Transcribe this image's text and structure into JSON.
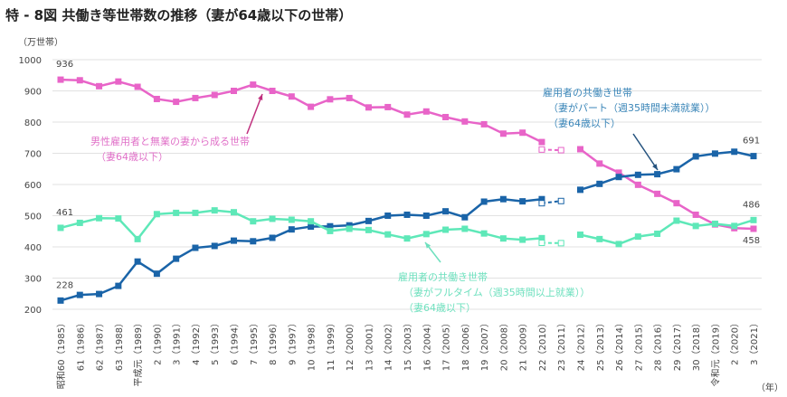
{
  "chart_data": {
    "type": "line",
    "title": "特 - 8図 共働き等世帯数の推移（妻が64歳以下の世帯）",
    "ylabel": "（万世帯）",
    "xlabel": "（年）",
    "ylim": [
      200,
      1000
    ],
    "yticks": [
      200,
      300,
      400,
      500,
      600,
      700,
      800,
      900,
      1000
    ],
    "grid": true,
    "x": [
      1985,
      1986,
      1987,
      1988,
      1989,
      1990,
      1991,
      1992,
      1993,
      1994,
      1995,
      1996,
      1997,
      1998,
      1999,
      2000,
      2001,
      2002,
      2003,
      2004,
      2005,
      2006,
      2007,
      2008,
      2009,
      2010,
      2011,
      2012,
      2013,
      2014,
      2015,
      2016,
      2017,
      2018,
      2019,
      2020,
      2021
    ],
    "categories": [
      "昭和60（1985）",
      "61（1986）",
      "62（1987）",
      "63（1988）",
      "平成元（1989）",
      "2（1990）",
      "3（1991）",
      "4（1992）",
      "5（1993）",
      "6（1994）",
      "7（1995）",
      "8（1996）",
      "9（1997）",
      "10（1998）",
      "11（1999）",
      "12（2000）",
      "13（2001）",
      "14（2002）",
      "15（2003）",
      "16（2004）",
      "17（2005）",
      "18（2006）",
      "19（2007）",
      "20（2008）",
      "21（2009）",
      "22（2010）",
      "23（2011）",
      "24（2012）",
      "25（2013）",
      "26（2014）",
      "27（2015）",
      "28（2016）",
      "29（2017）",
      "30（2018）",
      "令和元（2019）",
      "2（2020）",
      "3（2021）"
    ],
    "series": [
      {
        "name": "男性雇用者と無業の妻から成る世帯（妻64歳以下）",
        "label_lines": [
          "男性雇用者と無業の妻から成る世帯",
          "（妻64歳以下）"
        ],
        "color": "#e864c8",
        "values": [
          936,
          934,
          915,
          930,
          913,
          874,
          865,
          877,
          887,
          900,
          920,
          900,
          882,
          849,
          873,
          877,
          847,
          848,
          824,
          834,
          816,
          802,
          793,
          763,
          766,
          736,
          null,
          713,
          667,
          638,
          599,
          570,
          540,
          503,
          472,
          460,
          458
        ],
        "reference_2010_2011": [
          712,
          710
        ],
        "labels": {
          "1985": "936",
          "2021": "458"
        }
      },
      {
        "name": "雇用者の共働き世帯（妻がパート（週35時間未満就業））（妻64歳以下）",
        "label_lines": [
          "雇用者の共働き世帯",
          "（妻がパート（週35時間未満就業））",
          "（妻64歳以下）"
        ],
        "color": "#1a64a8",
        "values": [
          228,
          246,
          249,
          275,
          353,
          314,
          362,
          397,
          403,
          420,
          418,
          429,
          456,
          465,
          466,
          469,
          483,
          500,
          503,
          500,
          514,
          495,
          545,
          553,
          546,
          553,
          null,
          583,
          602,
          624,
          631,
          633,
          649,
          690,
          699,
          705,
          691
        ],
        "reference_2010_2011": [
          540,
          547
        ],
        "labels": {
          "1985": "228",
          "2021": "691"
        }
      },
      {
        "name": "雇用者の共働き世帯（妻がフルタイム（週35時間以上就業））（妻64歳以下）",
        "label_lines": [
          "雇用者の共働き世帯",
          "（妻がフルタイム（週35時間以上就業））",
          "（妻64歳以下）"
        ],
        "color": "#5ee8b8",
        "values": [
          461,
          477,
          492,
          491,
          425,
          505,
          509,
          509,
          517,
          511,
          482,
          490,
          487,
          482,
          451,
          458,
          454,
          440,
          427,
          441,
          455,
          458,
          443,
          427,
          423,
          428,
          null,
          439,
          425,
          409,
          433,
          442,
          484,
          467,
          474,
          467,
          486
        ],
        "reference_2010_2011": [
          413,
          412
        ],
        "labels": {
          "1985": "461",
          "2021": "486"
        }
      }
    ]
  }
}
